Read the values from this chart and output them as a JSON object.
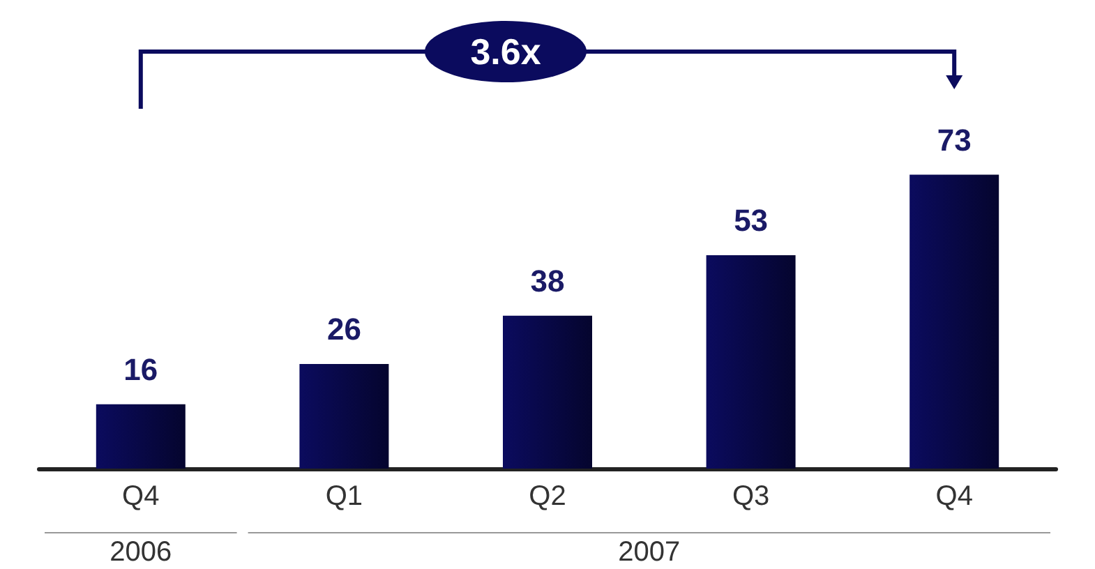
{
  "chart_data": {
    "type": "bar",
    "categories": [
      "Q4",
      "Q1",
      "Q2",
      "Q3",
      "Q4"
    ],
    "values": [
      16,
      26,
      38,
      53,
      73
    ],
    "color": "#0b0b5e",
    "data_labels": true,
    "grid": false,
    "annotations": [
      "3.6x",
      "2006",
      "2007"
    ]
  }
}
